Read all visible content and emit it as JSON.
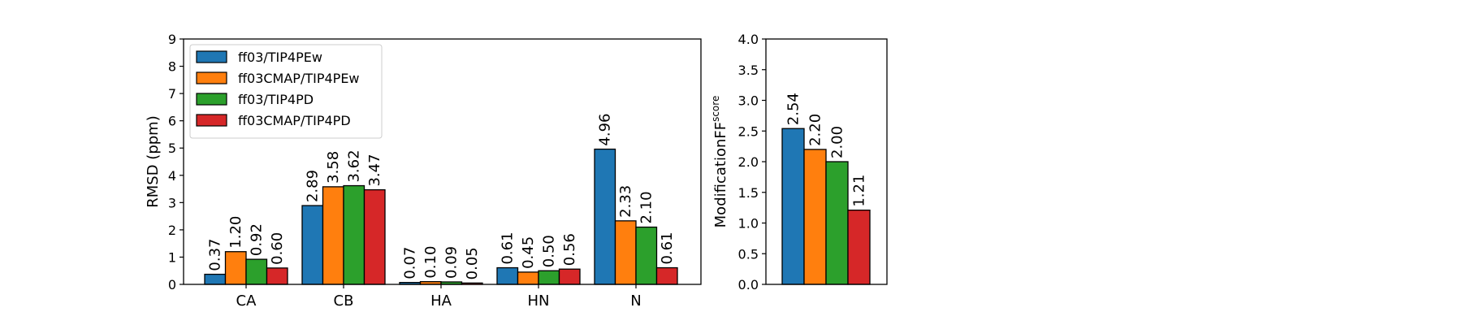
{
  "chart_data": [
    {
      "type": "bar",
      "categories": [
        "CA",
        "CB",
        "HA",
        "HN",
        "N"
      ],
      "series": [
        {
          "name": "ff03/TIP4PEw",
          "color": "#1f77b4",
          "values": [
            0.37,
            2.89,
            0.07,
            0.61,
            4.96
          ],
          "labels": [
            "0.37",
            "2.89",
            "0.07",
            "0.61",
            "4.96"
          ]
        },
        {
          "name": "ff03CMAP/TIP4PEw",
          "color": "#ff7f0e",
          "values": [
            1.2,
            3.58,
            0.1,
            0.45,
            2.33
          ],
          "labels": [
            "1.20",
            "3.58",
            "0.10",
            "0.45",
            "2.33"
          ]
        },
        {
          "name": "ff03/TIP4PD",
          "color": "#2ca02c",
          "values": [
            0.92,
            3.62,
            0.09,
            0.5,
            2.1
          ],
          "labels": [
            "0.92",
            "3.62",
            "0.09",
            "0.50",
            "2.10"
          ]
        },
        {
          "name": "ff03CMAP/TIP4PD",
          "color": "#d62728",
          "values": [
            0.6,
            3.47,
            0.05,
            0.56,
            0.61
          ],
          "labels": [
            "0.60",
            "3.47",
            "0.05",
            "0.56",
            "0.61"
          ]
        }
      ],
      "ylabel": "RMSD (ppm)",
      "ylim": [
        0,
        9
      ],
      "yticks": [
        "0",
        "1",
        "2",
        "3",
        "4",
        "5",
        "6",
        "7",
        "8",
        "9"
      ],
      "legend": "top-left",
      "grid": false
    },
    {
      "type": "bar",
      "categories": [],
      "values": [
        2.54,
        2.2,
        2.0,
        1.21
      ],
      "labels": [
        "2.54",
        "2.20",
        "2.00",
        "1.21"
      ],
      "colors": [
        "#1f77b4",
        "#ff7f0e",
        "#2ca02c",
        "#d62728"
      ],
      "ylabel_main": "ModificationFF",
      "ylabel_sub": "score",
      "ylim": [
        0,
        4
      ],
      "yticks": [
        "0.0",
        "0.5",
        "1.0",
        "1.5",
        "2.0",
        "2.5",
        "3.0",
        "3.5",
        "4.0"
      ],
      "grid": false
    }
  ]
}
